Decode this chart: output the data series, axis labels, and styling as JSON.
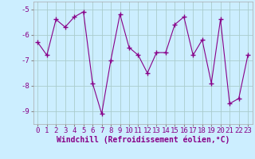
{
  "x": [
    0,
    1,
    2,
    3,
    4,
    5,
    6,
    7,
    8,
    9,
    10,
    11,
    12,
    13,
    14,
    15,
    16,
    17,
    18,
    19,
    20,
    21,
    22,
    23
  ],
  "y": [
    -6.3,
    -6.8,
    -5.4,
    -5.7,
    -5.3,
    -5.1,
    -7.9,
    -9.1,
    -7.0,
    -5.2,
    -6.5,
    -6.8,
    -7.5,
    -6.7,
    -6.7,
    -5.6,
    -5.3,
    -6.8,
    -6.2,
    -7.9,
    -5.4,
    -8.7,
    -8.5,
    -6.8
  ],
  "line_color": "#880088",
  "marker": "+",
  "marker_size": 4,
  "xlabel": "Windchill (Refroidissement éolien,°C)",
  "xlim": [
    -0.5,
    23.5
  ],
  "ylim": [
    -9.5,
    -4.7
  ],
  "yticks": [
    -9,
    -8,
    -7,
    -6,
    -5
  ],
  "xticks": [
    0,
    1,
    2,
    3,
    4,
    5,
    6,
    7,
    8,
    9,
    10,
    11,
    12,
    13,
    14,
    15,
    16,
    17,
    18,
    19,
    20,
    21,
    22,
    23
  ],
  "bg_color": "#cceeff",
  "grid_color": "#aacccc",
  "tick_label_fontsize": 6.5,
  "xlabel_fontsize": 7
}
